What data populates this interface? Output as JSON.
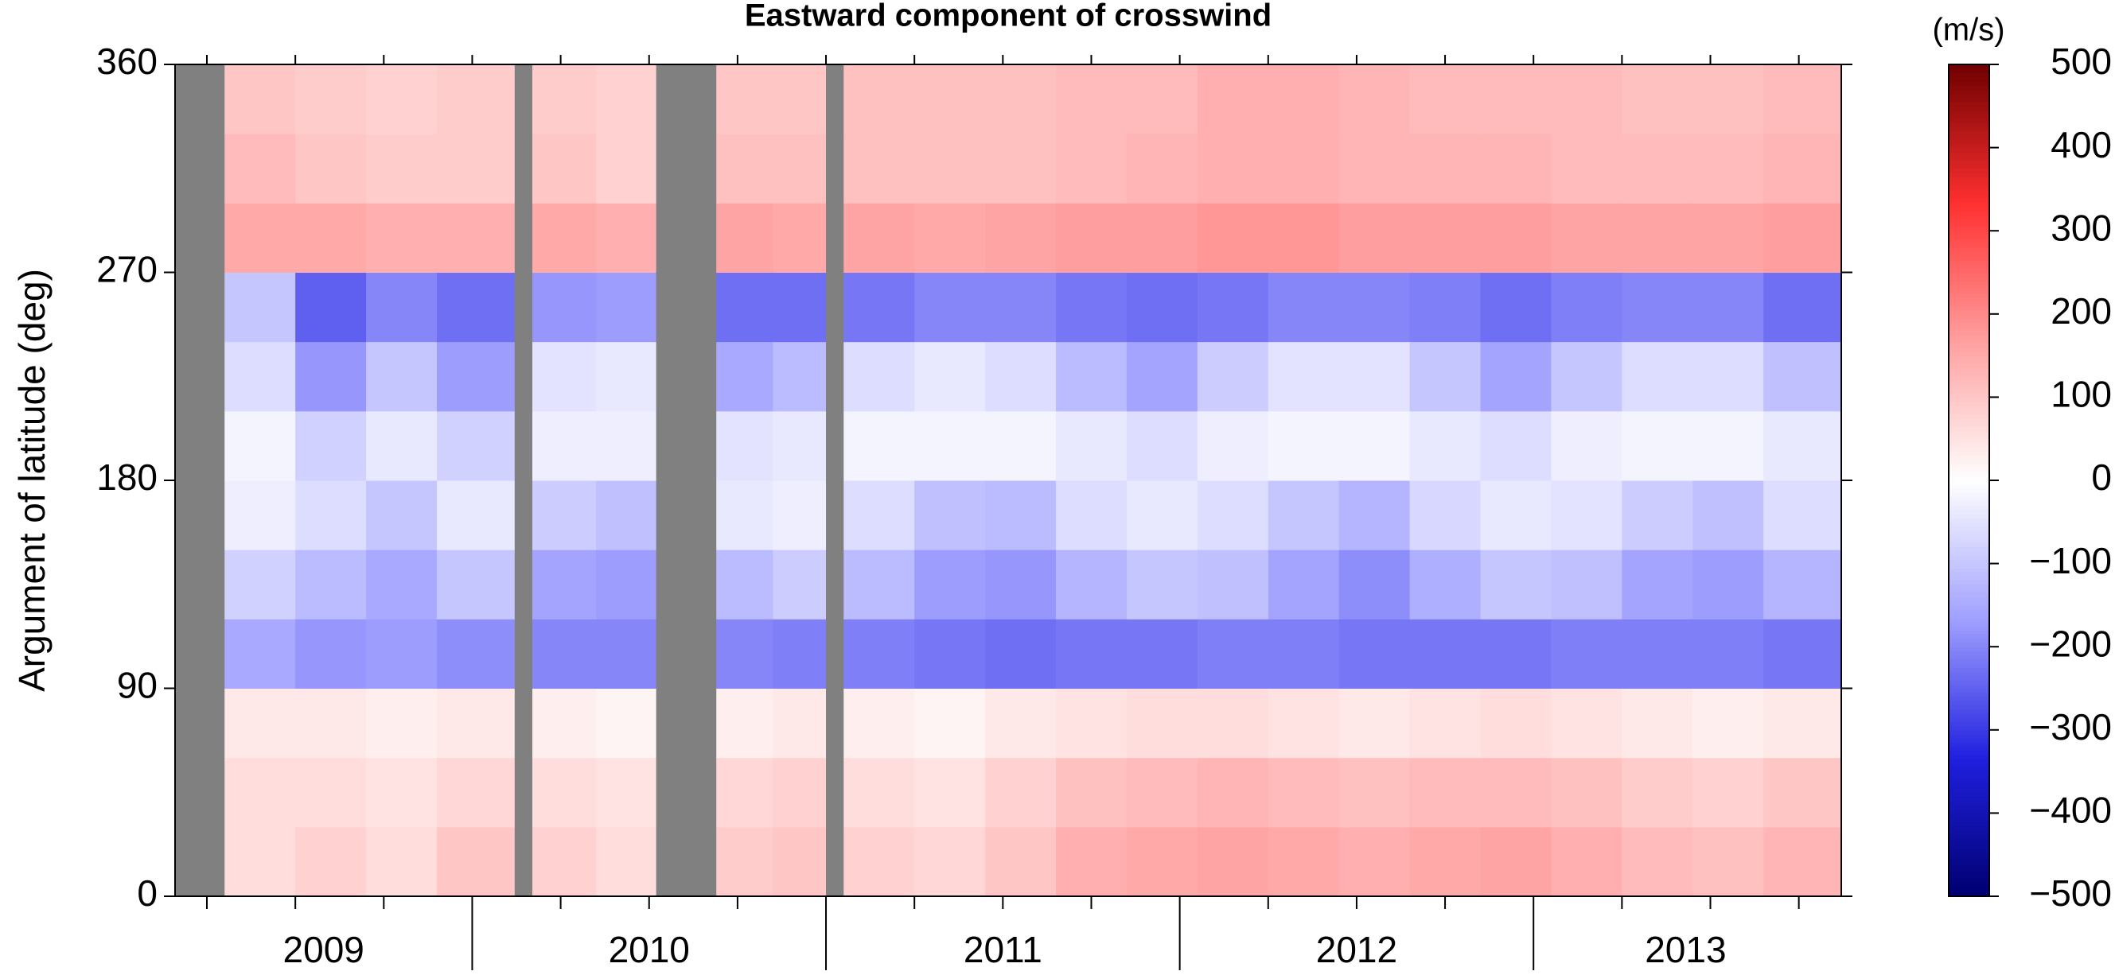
{
  "chart_data": {
    "type": "heatmap",
    "title": "Eastward component of crosswind",
    "ylabel": "Argument of latitude (deg)",
    "colorbar_label": "(m/s)",
    "xlim": [
      2009.16,
      2013.87
    ],
    "ylim": [
      0,
      360
    ],
    "yticks": [
      0,
      90,
      180,
      270,
      360
    ],
    "xticks_major": [
      2010,
      2011,
      2012,
      2013
    ],
    "xticks_minor": [
      2009.25,
      2009.5,
      2009.75,
      2010.25,
      2010.5,
      2010.75,
      2011.25,
      2011.5,
      2011.75,
      2012.25,
      2012.5,
      2012.75,
      2013.25,
      2013.5,
      2013.75
    ],
    "xtick_labels": [
      {
        "value": 2009.58,
        "label": "2009"
      },
      {
        "value": 2010.5,
        "label": "2010"
      },
      {
        "value": 2011.5,
        "label": "2011"
      },
      {
        "value": 2012.5,
        "label": "2012"
      },
      {
        "value": 2013.43,
        "label": "2013"
      }
    ],
    "clim": [
      -500,
      500
    ],
    "cticks": [
      {
        "value": -500,
        "label": "−500"
      },
      {
        "value": -400,
        "label": "−400"
      },
      {
        "value": -300,
        "label": "−300"
      },
      {
        "value": -200,
        "label": "−200"
      },
      {
        "value": -100,
        "label": "−100"
      },
      0,
      100,
      200,
      300,
      400,
      500
    ],
    "colorscale": [
      "#000070",
      "#2020e0",
      "#a0a0ff",
      "#ffffff",
      "#ffa0a0",
      "#ff3030",
      "#700000"
    ],
    "missing_color": "#808080",
    "xbins": [
      2009.16,
      2009.3,
      2009.5,
      2009.7,
      2009.9,
      2010.12,
      2010.17,
      2010.35,
      2010.52,
      2010.69,
      2010.85,
      2011.0,
      2011.05,
      2011.25,
      2011.45,
      2011.65,
      2011.85,
      2012.05,
      2012.25,
      2012.45,
      2012.65,
      2012.85,
      2013.05,
      2013.25,
      2013.45,
      2013.65,
      2013.87
    ],
    "ybins": [
      0,
      30,
      60,
      90,
      120,
      150,
      180,
      210,
      240,
      270,
      300,
      330,
      360
    ],
    "values": [
      null,
      [
        60,
        60,
        40,
        -150,
        -80,
        -30,
        -20,
        -60,
        -100,
        150,
        120,
        100
      ],
      [
        80,
        60,
        40,
        -180,
        -120,
        -60,
        -80,
        -180,
        -250,
        150,
        100,
        90
      ],
      [
        60,
        50,
        30,
        -170,
        -150,
        -100,
        -40,
        -100,
        -200,
        140,
        90,
        80
      ],
      [
        100,
        70,
        40,
        -190,
        -100,
        -40,
        -80,
        -170,
        -230,
        140,
        90,
        90
      ],
      null,
      [
        80,
        60,
        30,
        -200,
        -160,
        -90,
        -30,
        -50,
        -180,
        150,
        100,
        90
      ],
      [
        60,
        50,
        20,
        -200,
        -170,
        -110,
        -30,
        -40,
        -170,
        140,
        80,
        80
      ],
      null,
      [
        90,
        70,
        30,
        -200,
        -120,
        -40,
        -50,
        -150,
        -230,
        160,
        110,
        100
      ],
      [
        100,
        80,
        40,
        -210,
        -90,
        -30,
        -40,
        -120,
        -230,
        150,
        110,
        100
      ],
      null,
      [
        80,
        60,
        30,
        -210,
        -120,
        -60,
        -20,
        -60,
        -220,
        160,
        110,
        110
      ],
      [
        70,
        50,
        20,
        -220,
        -170,
        -110,
        -20,
        -40,
        -200,
        150,
        110,
        110
      ],
      [
        100,
        80,
        40,
        -230,
        -180,
        -120,
        -20,
        -60,
        -200,
        160,
        110,
        110
      ],
      [
        140,
        110,
        50,
        -220,
        -130,
        -60,
        -40,
        -120,
        -220,
        170,
        120,
        120
      ],
      [
        150,
        120,
        60,
        -220,
        -100,
        -40,
        -60,
        -160,
        -230,
        170,
        130,
        120
      ],
      [
        160,
        130,
        60,
        -210,
        -110,
        -60,
        -30,
        -90,
        -220,
        180,
        140,
        140
      ],
      [
        150,
        120,
        50,
        -210,
        -160,
        -100,
        -20,
        -50,
        -200,
        180,
        140,
        140
      ],
      [
        140,
        110,
        40,
        -220,
        -190,
        -130,
        -20,
        -50,
        -200,
        170,
        130,
        130
      ],
      [
        150,
        120,
        50,
        -220,
        -140,
        -70,
        -40,
        -100,
        -210,
        170,
        130,
        120
      ],
      [
        160,
        120,
        60,
        -220,
        -100,
        -40,
        -60,
        -160,
        -230,
        170,
        130,
        120
      ],
      [
        140,
        110,
        50,
        -210,
        -110,
        -50,
        -30,
        -100,
        -210,
        160,
        120,
        120
      ],
      [
        120,
        90,
        40,
        -210,
        -160,
        -90,
        -20,
        -60,
        -200,
        160,
        120,
        110
      ],
      [
        110,
        80,
        30,
        -210,
        -170,
        -110,
        -20,
        -60,
        -200,
        160,
        120,
        110
      ],
      [
        130,
        100,
        40,
        -220,
        -130,
        -60,
        -40,
        -110,
        -230,
        170,
        130,
        120
      ]
    ]
  }
}
